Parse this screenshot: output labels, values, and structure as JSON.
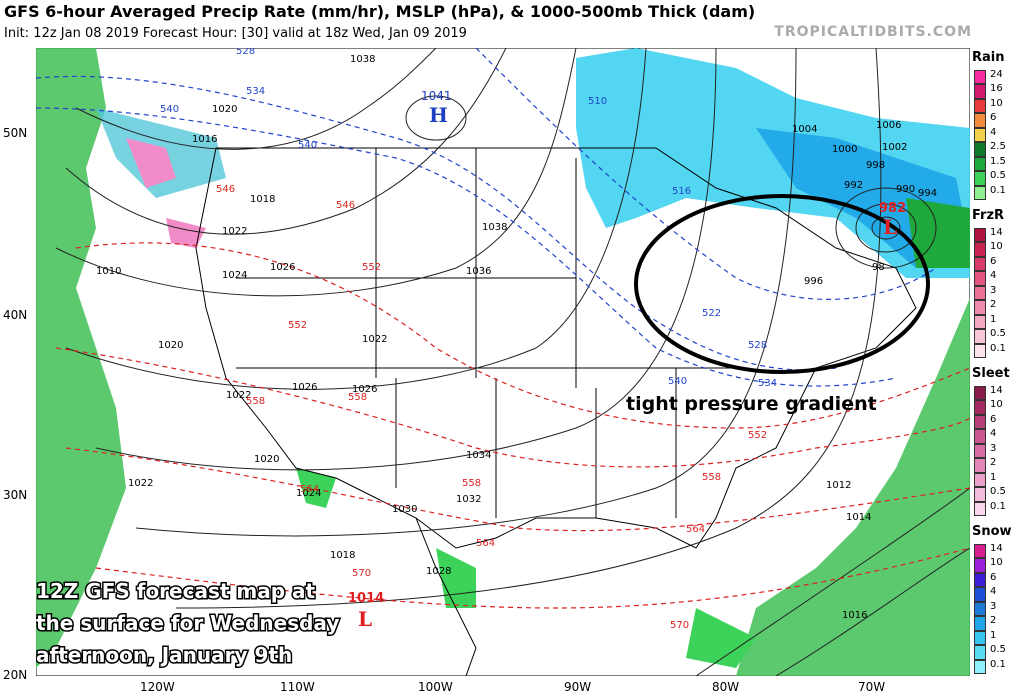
{
  "header": {
    "title": "GFS 6-hour Averaged Precip Rate (mm/hr), MSLP (hPa), & 1000-500mb Thick (dam)",
    "subtitle": "Init: 12z Jan 08 2019   Forecast Hour: [30]   valid at 18z Wed, Jan 09 2019",
    "brand": "TROPICALTIDBITS.COM"
  },
  "axes": {
    "lat_labels": [
      "50N",
      "40N",
      "30N",
      "20N"
    ],
    "lon_labels": [
      "120W",
      "110W",
      "100W",
      "90W",
      "80W",
      "70W"
    ]
  },
  "map": {
    "annotation_text": "tight pressure gradient",
    "caption_lines": [
      "12Z GFS forecast map at",
      "the surface for Wednesday",
      "afternoon, January 9th"
    ],
    "centers": [
      {
        "type": "H",
        "value": "1041",
        "color": "#1a3fbf"
      },
      {
        "type": "L",
        "value": "982",
        "color": "#e02020"
      },
      {
        "type": "L",
        "value": "1014",
        "color": "#e02020"
      }
    ],
    "isobar_labels": [
      "1038",
      "1038",
      "1036",
      "1034",
      "1032",
      "1030",
      "1028",
      "1026",
      "1026",
      "1026",
      "1024",
      "1024",
      "1022",
      "1022",
      "1022",
      "1022",
      "1020",
      "1020",
      "1020",
      "1018",
      "1018",
      "1016",
      "1016",
      "1014",
      "1012",
      "1010",
      "1006",
      "1004",
      "1002",
      "1000",
      "998",
      "996",
      "994",
      "992",
      "990",
      "98"
    ],
    "thickness_labels": [
      "528",
      "534",
      "540",
      "540",
      "510",
      "516",
      "522",
      "528",
      "534",
      "540",
      "546",
      "546",
      "552",
      "552",
      "552",
      "558",
      "558",
      "558",
      "558",
      "564",
      "564",
      "564",
      "570",
      "570"
    ]
  },
  "legend": {
    "sections": [
      {
        "title": "Rain",
        "ticks": [
          "24",
          "16",
          "10",
          "6",
          "4",
          "2.5",
          "1.5",
          "0.5",
          "0.1"
        ],
        "colors": [
          "#f42ca0",
          "#d2176e",
          "#e83c3c",
          "#f28c3c",
          "#f5d24b",
          "#0f7a2a",
          "#1fa83c",
          "#3dd25a",
          "#8ff08f"
        ]
      },
      {
        "title": "FrzR",
        "ticks": [
          "14",
          "10",
          "6",
          "4",
          "3",
          "2",
          "1",
          "0.5",
          "0.1"
        ],
        "colors": [
          "#b0123e",
          "#c72452",
          "#d63a68",
          "#e2557e",
          "#ea7096",
          "#f08aae",
          "#f4a8c4",
          "#f8c6d8",
          "#fce2ec"
        ]
      },
      {
        "title": "Sleet",
        "ticks": [
          "14",
          "10",
          "6",
          "4",
          "3",
          "2",
          "1",
          "0.5",
          "0.1"
        ],
        "colors": [
          "#8a1a48",
          "#a32a60",
          "#b83e78",
          "#cb5690",
          "#d96ea6",
          "#e488ba",
          "#eda2cc",
          "#f4bcdc",
          "#fad8ec"
        ]
      },
      {
        "title": "Snow",
        "ticks": [
          "14",
          "10",
          "6",
          "4",
          "3",
          "2",
          "1",
          "0.5",
          "0.1"
        ],
        "colors": [
          "#d61e8e",
          "#9c1ed6",
          "#3c1ed6",
          "#1e4fd6",
          "#1e7ad6",
          "#1ea6e8",
          "#38c4f0",
          "#5adcf5",
          "#8ef0fa"
        ]
      }
    ]
  },
  "colors": {
    "precip_green": "#3fbf55",
    "precip_cyan": "#3fd2f0",
    "isobar": "#222222",
    "thickness_cold": "#2244cc",
    "thickness_warm": "#dd2222",
    "boundary": "#000000"
  }
}
